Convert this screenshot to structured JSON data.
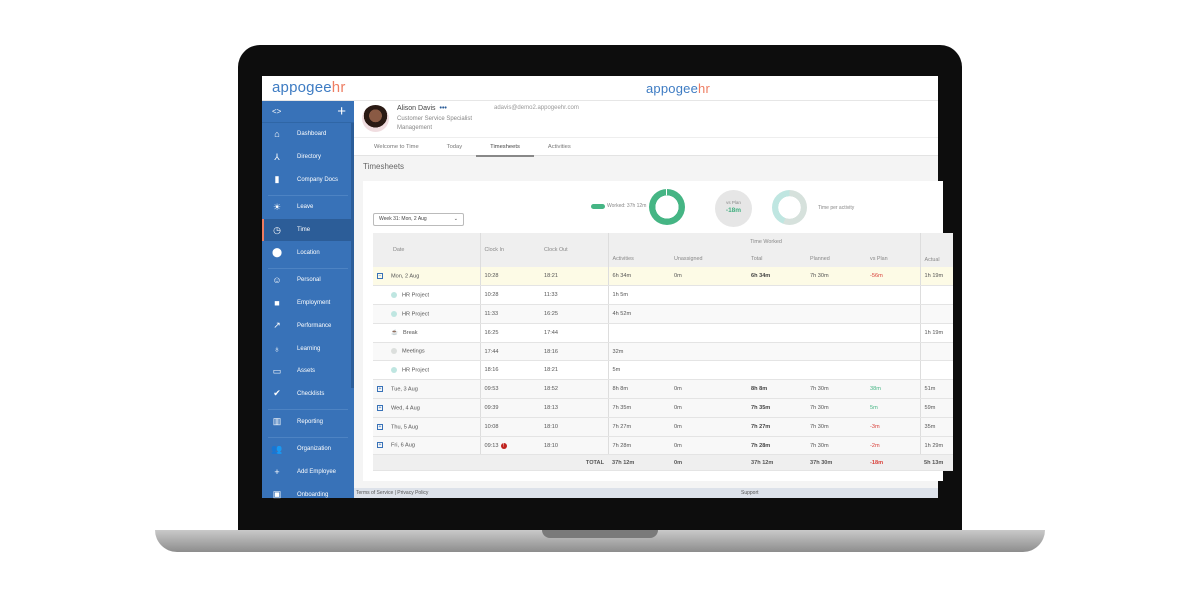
{
  "brand": {
    "name_a": "appogee",
    "name_b": "hr",
    "accent": "#3872b8",
    "hr_color": "#ee7d62"
  },
  "sidebar": {
    "toggle": "<>",
    "add": "+",
    "items": [
      {
        "label": "Dashboard",
        "icon": "home-icon"
      },
      {
        "label": "Directory",
        "icon": "org-icon"
      },
      {
        "label": "Company Docs",
        "icon": "document-icon"
      },
      {
        "label": "Leave",
        "icon": "sun-icon"
      },
      {
        "label": "Time",
        "icon": "clock-icon",
        "active": true
      },
      {
        "label": "Location",
        "icon": "pin-icon"
      },
      {
        "label": "Personal",
        "icon": "face-icon"
      },
      {
        "label": "Employment",
        "icon": "briefcase-icon"
      },
      {
        "label": "Performance",
        "icon": "trend-icon"
      },
      {
        "label": "Learning",
        "icon": "bulb-icon"
      },
      {
        "label": "Assets",
        "icon": "devices-icon"
      },
      {
        "label": "Checklists",
        "icon": "check-circle-icon"
      },
      {
        "label": "Reporting",
        "icon": "bar-chart-icon"
      },
      {
        "label": "Organization",
        "icon": "people-icon"
      },
      {
        "label": "Add Employee",
        "icon": "add-person-icon"
      },
      {
        "label": "Onboarding",
        "icon": "calendar-icon"
      }
    ]
  },
  "profile": {
    "name": "Alison Davis",
    "more": "•••",
    "title": "Customer Service Specialist",
    "department": "Management",
    "email": "adavis@demo2.appogeehr.com"
  },
  "tabs": [
    "Welcome to Time",
    "Today",
    "Timesheets",
    "Activities"
  ],
  "active_tab": "Timesheets",
  "page_title": "Timesheets",
  "week_select": "Week 31: Mon, 2 Aug",
  "summary": {
    "worked": "Worked: 37h 12m",
    "vs_plan_label": "vs Plan",
    "vs_plan": "-18m",
    "time_per_activity": "Time per activity",
    "worked_color": "#45b584"
  },
  "table": {
    "group_header": "Time Worked",
    "headers": [
      "Date",
      "Clock In",
      "Clock Out",
      "Activities",
      "Unassigned",
      "Total",
      "Planned",
      "vs Plan",
      "Actual"
    ],
    "days": [
      {
        "date": "Mon, 2 Aug",
        "in": "10:28",
        "out": "18:21",
        "activities": "6h 34m",
        "unassigned": "0m",
        "total": "6h 34m",
        "planned": "7h 30m",
        "vs": "-56m",
        "actual": "1h 19m",
        "open": true,
        "entries": [
          {
            "name": "HR Project",
            "in": "10:28",
            "out": "11:33",
            "activities": "1h 5m",
            "actual": "",
            "kind": "project"
          },
          {
            "name": "HR Project",
            "in": "11:33",
            "out": "16:25",
            "activities": "4h 52m",
            "actual": "",
            "kind": "project"
          },
          {
            "name": "Break",
            "in": "16:25",
            "out": "17:44",
            "activities": "",
            "actual": "1h 19m",
            "kind": "break"
          },
          {
            "name": "Meetings",
            "in": "17:44",
            "out": "18:16",
            "activities": "32m",
            "actual": "",
            "kind": "meeting"
          },
          {
            "name": "HR Project",
            "in": "18:16",
            "out": "18:21",
            "activities": "5m",
            "actual": "",
            "kind": "project"
          }
        ]
      },
      {
        "date": "Tue, 3 Aug",
        "in": "09:53",
        "out": "18:52",
        "activities": "8h 8m",
        "unassigned": "0m",
        "total": "8h 8m",
        "planned": "7h 30m",
        "vs": "38m",
        "actual": "51m"
      },
      {
        "date": "Wed, 4 Aug",
        "in": "09:39",
        "out": "18:13",
        "activities": "7h 35m",
        "unassigned": "0m",
        "total": "7h 35m",
        "planned": "7h 30m",
        "vs": "5m",
        "actual": "59m"
      },
      {
        "date": "Thu, 5 Aug",
        "in": "10:08",
        "out": "18:10",
        "activities": "7h 27m",
        "unassigned": "0m",
        "total": "7h 27m",
        "planned": "7h 30m",
        "vs": "-3m",
        "actual": "35m"
      },
      {
        "date": "Fri, 6 Aug",
        "in": "09:13",
        "out": "18:10",
        "activities": "7h 28m",
        "unassigned": "0m",
        "total": "7h 28m",
        "planned": "7h 30m",
        "vs": "-2m",
        "actual": "1h 29m",
        "warning": true
      }
    ],
    "total": {
      "label": "TOTAL",
      "activities": "37h 12m",
      "unassigned": "0m",
      "total": "37h 12m",
      "planned": "37h 30m",
      "vs": "-18m",
      "actual": "5h 13m"
    }
  },
  "footer": {
    "links": "Terms of Service | Privacy Policy",
    "support": "Support"
  }
}
